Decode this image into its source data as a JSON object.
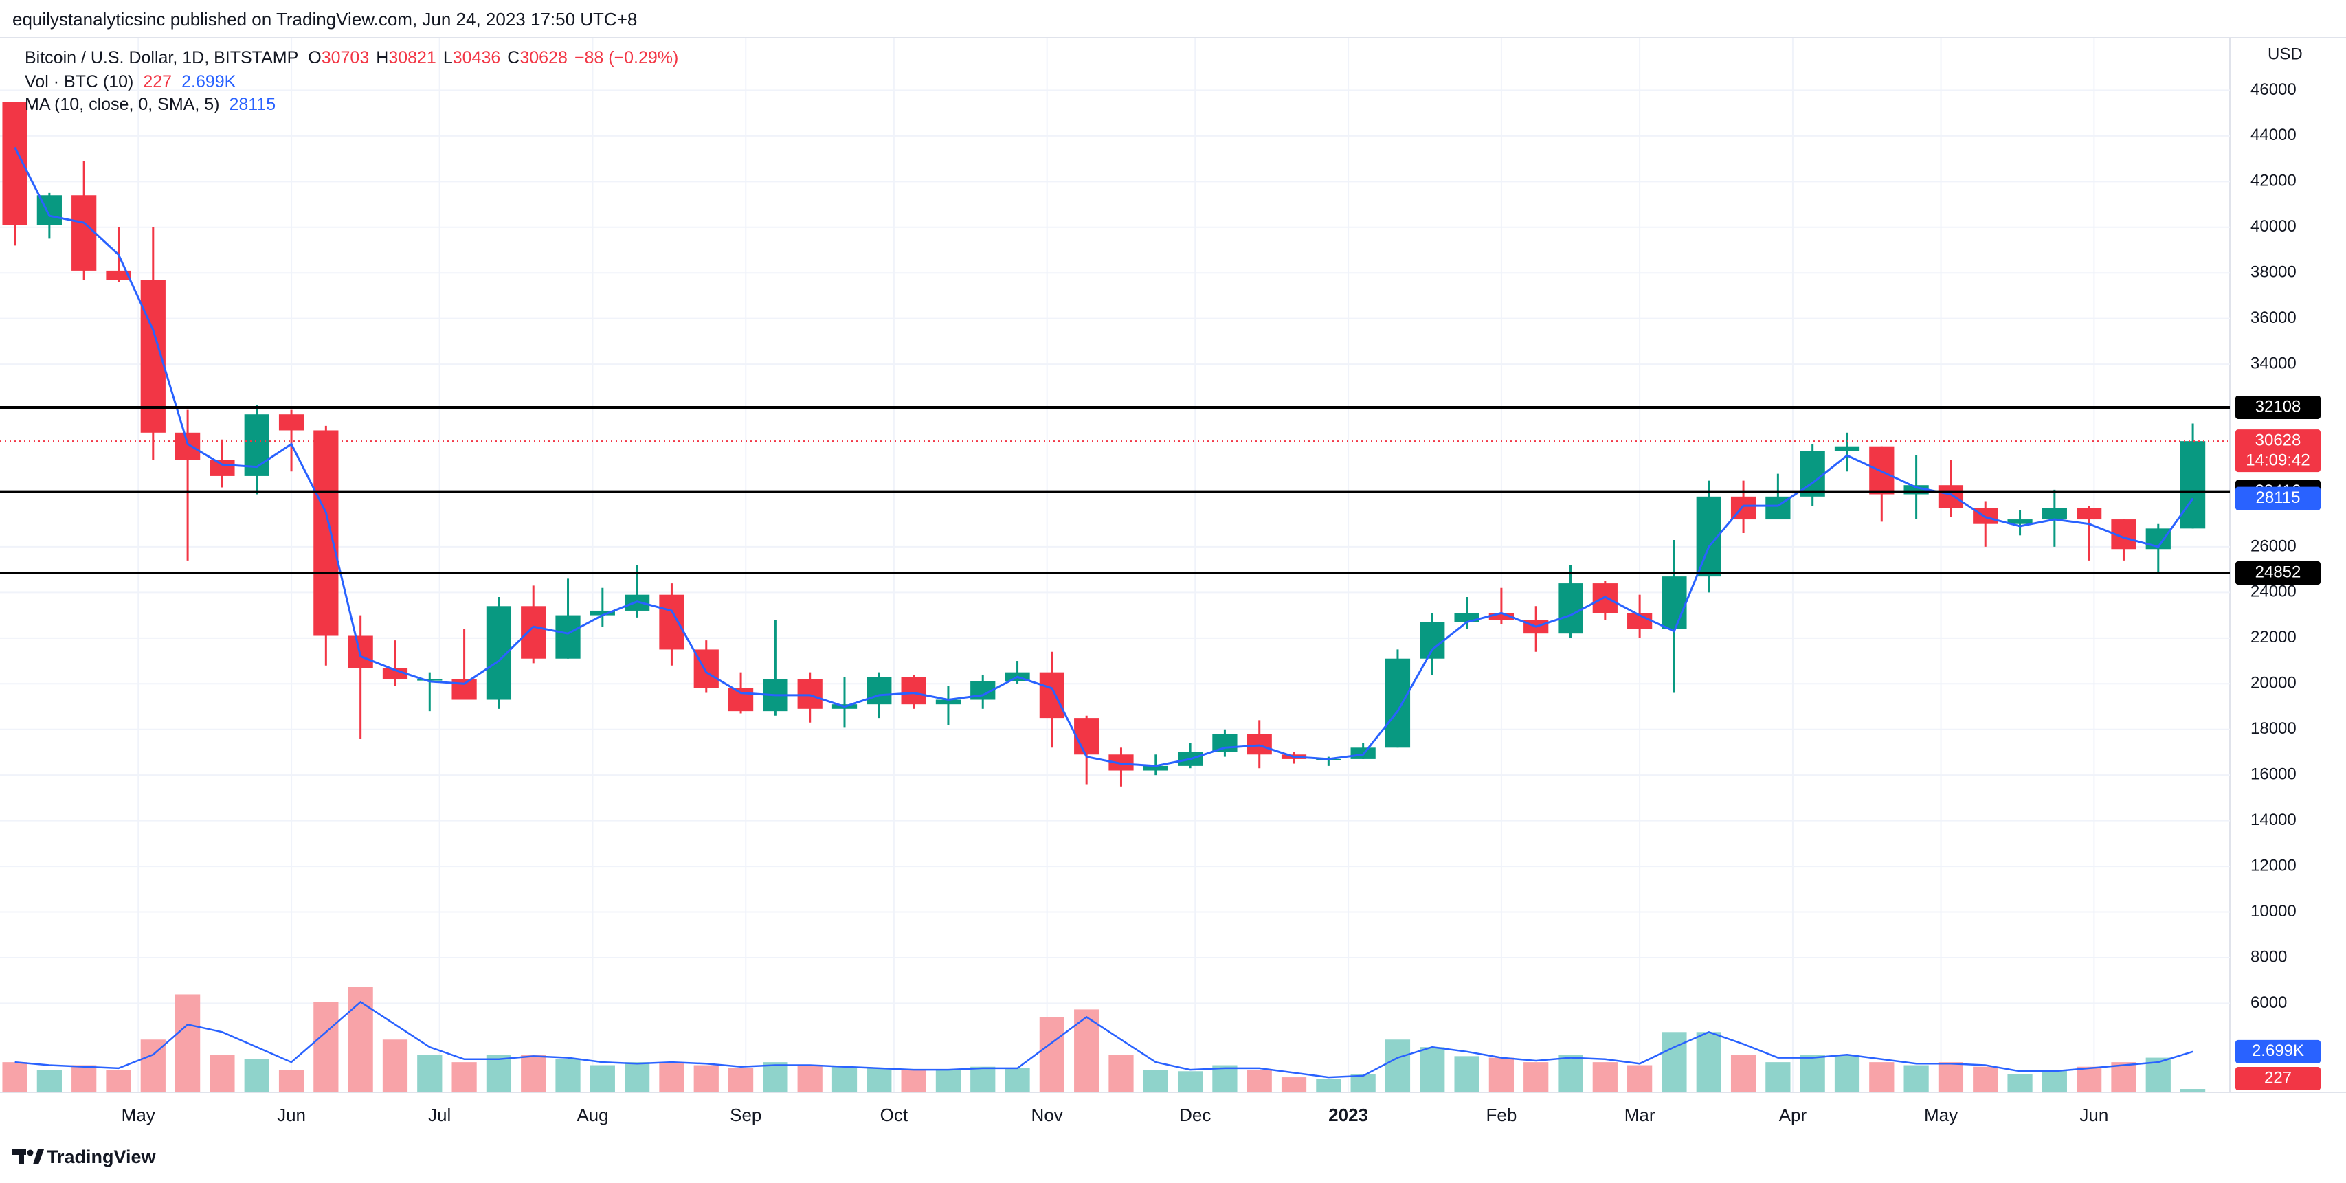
{
  "header": "equilystanalyticsinc published on TradingView.com, Jun 24, 2023 17:50 UTC+8",
  "footer": "TradingView",
  "chart_data": {
    "type": "candlestick",
    "symbol": "Bitcoin / U.S. Dollar, 1D, BITSTAMP",
    "ohlc_legend": [
      {
        "label": "O",
        "value": 30703
      },
      {
        "label": "H",
        "value": 30821
      },
      {
        "label": "L",
        "value": 30436
      },
      {
        "label": "C",
        "value": 30628
      }
    ],
    "change_label": "−88 (−0.29%)",
    "y_axis_label": "USD",
    "x": [
      0,
      7,
      14,
      21,
      28,
      35,
      42,
      49,
      56,
      63,
      70,
      77,
      84,
      91,
      98,
      105,
      112,
      119,
      126,
      133,
      140,
      147,
      154,
      161,
      168,
      175,
      182,
      189,
      196,
      203,
      210,
      217,
      224,
      231,
      238,
      245,
      252,
      259,
      266,
      273,
      280,
      287,
      294,
      301,
      308,
      315,
      322,
      329,
      336,
      343,
      350,
      357,
      364,
      371,
      378,
      385,
      392,
      399,
      406,
      413,
      420,
      427,
      434,
      441
    ],
    "open": [
      45500,
      40100,
      41400,
      38100,
      37700,
      31000,
      29800,
      29100,
      31800,
      31100,
      22100,
      20700,
      20200,
      20200,
      19300,
      23400,
      21100,
      23000,
      23200,
      23900,
      21500,
      19800,
      18800,
      20200,
      18900,
      19100,
      20300,
      19100,
      19300,
      20100,
      20500,
      18500,
      16900,
      16200,
      16400,
      17000,
      17800,
      16900,
      16700,
      16700,
      17200,
      21100,
      22700,
      23100,
      22800,
      22200,
      24400,
      23100,
      22400,
      24700,
      28200,
      27200,
      28200,
      30200,
      30400,
      28300,
      28700,
      27700,
      27000,
      27200,
      27700,
      27200,
      25900,
      26800
    ],
    "high": [
      45500,
      41500,
      42900,
      40000,
      40000,
      32000,
      30700,
      32200,
      32000,
      31300,
      23000,
      21900,
      20500,
      22400,
      23800,
      24300,
      24600,
      24200,
      25200,
      24400,
      21900,
      20500,
      22800,
      20500,
      20300,
      20500,
      20400,
      19900,
      20400,
      21000,
      21400,
      18600,
      17200,
      16900,
      17400,
      18000,
      18400,
      17000,
      16800,
      17400,
      21500,
      23100,
      23800,
      24200,
      23400,
      25200,
      24500,
      23900,
      26300,
      28900,
      28900,
      29200,
      30500,
      31000,
      30400,
      30000,
      29800,
      28000,
      27600,
      28500,
      27800,
      27200,
      27000,
      31400
    ],
    "low": [
      39200,
      39500,
      37700,
      37600,
      29800,
      25400,
      28600,
      28300,
      29300,
      20800,
      17600,
      19900,
      18800,
      19300,
      18900,
      20900,
      21100,
      22500,
      22900,
      20800,
      19600,
      18700,
      18600,
      18300,
      18100,
      18500,
      18900,
      18200,
      18900,
      20000,
      17200,
      15600,
      15500,
      16000,
      16300,
      16800,
      16300,
      16500,
      16400,
      16700,
      17200,
      20400,
      22400,
      22600,
      21400,
      22000,
      22800,
      22000,
      19600,
      24000,
      26600,
      27200,
      27800,
      29300,
      27100,
      27200,
      27300,
      26000,
      26500,
      26000,
      25400,
      25400,
      24800,
      26800
    ],
    "close": [
      40100,
      41400,
      38100,
      37700,
      31000,
      29800,
      29100,
      31800,
      31100,
      22100,
      20700,
      20200,
      20200,
      19300,
      23400,
      21100,
      23000,
      23200,
      23900,
      21500,
      19800,
      18800,
      20200,
      18900,
      19100,
      20300,
      19100,
      19300,
      20100,
      20500,
      18500,
      16900,
      16200,
      16400,
      17000,
      17800,
      16900,
      16700,
      16700,
      17200,
      21100,
      22700,
      23100,
      22800,
      22200,
      24400,
      23100,
      22400,
      24700,
      28200,
      27200,
      28200,
      30200,
      30400,
      28300,
      28700,
      27700,
      27000,
      27200,
      27700,
      27200,
      25900,
      26800,
      30628
    ],
    "up_color": "#089981",
    "down_color": "#f23645",
    "series": [
      {
        "name": "MA (10, close, 0, SMA, 5)",
        "color": "#2962ff",
        "values": [
          43500,
          40500,
          40200,
          38800,
          35500,
          30500,
          29600,
          29500,
          30500,
          27500,
          21200,
          20600,
          20100,
          20000,
          21000,
          22500,
          22200,
          23000,
          23600,
          23200,
          20500,
          19600,
          19500,
          19500,
          19000,
          19500,
          19600,
          19300,
          19500,
          20300,
          19800,
          16800,
          16500,
          16400,
          16700,
          17200,
          17300,
          16800,
          16700,
          16900,
          18800,
          21500,
          22700,
          23100,
          22500,
          23000,
          23800,
          23000,
          22300,
          26000,
          27800,
          27800,
          28800,
          30000,
          29300,
          28600,
          28300,
          27300,
          26900,
          27200,
          27000,
          26400,
          26000,
          28115
        ]
      }
    ],
    "volume": {
      "name": "Vol · BTC (10)",
      "axis": "y2",
      "up_color": "#8fd3cb",
      "down_color": "#f8a3a8",
      "ma_color": "#2962ff",
      "ma_label": "2.699K",
      "values": [
        2000,
        1500,
        1800,
        1500,
        3500,
        6500,
        2500,
        2200,
        1500,
        6000,
        7000,
        3500,
        2500,
        2000,
        2500,
        2500,
        2200,
        1800,
        2000,
        2000,
        1800,
        1600,
        2000,
        1800,
        1700,
        1600,
        1500,
        1500,
        1700,
        1600,
        5000,
        5500,
        2500,
        1500,
        1400,
        1800,
        1500,
        1000,
        900,
        1200,
        3500,
        3000,
        2400,
        2300,
        2000,
        2500,
        2000,
        1800,
        4000,
        4000,
        2500,
        2000,
        2500,
        2500,
        2000,
        1800,
        2000,
        1700,
        1200,
        1500,
        1700,
        2000,
        2300,
        227
      ],
      "ma_values": [
        2000,
        1800,
        1700,
        1600,
        2500,
        4500,
        4000,
        3000,
        2000,
        4000,
        6000,
        4500,
        3000,
        2200,
        2200,
        2400,
        2300,
        2000,
        1900,
        2000,
        1900,
        1700,
        1800,
        1800,
        1700,
        1600,
        1500,
        1500,
        1600,
        1600,
        3300,
        5000,
        3500,
        2000,
        1500,
        1600,
        1600,
        1300,
        1000,
        1100,
        2300,
        3000,
        2700,
        2300,
        2100,
        2300,
        2200,
        1900,
        3000,
        4000,
        3200,
        2300,
        2300,
        2500,
        2200,
        1900,
        1900,
        1800,
        1400,
        1400,
        1600,
        1800,
        2000,
        2699
      ]
    },
    "levels": [
      32108,
      28416,
      24852
    ],
    "level_color": "#000000",
    "countdown": "14:09:42",
    "xlim": [
      -3,
      448.5
    ],
    "ylim": [
      2100,
      48300
    ],
    "y2lim": [
      0,
      70000
    ],
    "xticks": [
      {
        "value": 25,
        "label": "May"
      },
      {
        "value": 56,
        "label": "Jun"
      },
      {
        "value": 86,
        "label": "Jul"
      },
      {
        "value": 117,
        "label": "Aug"
      },
      {
        "value": 148,
        "label": "Sep"
      },
      {
        "value": 178,
        "label": "Oct"
      },
      {
        "value": 209,
        "label": "Nov"
      },
      {
        "value": 239,
        "label": "Dec"
      },
      {
        "value": 270,
        "label": "2023"
      },
      {
        "value": 301,
        "label": "Feb"
      },
      {
        "value": 329,
        "label": "Mar"
      },
      {
        "value": 360,
        "label": "Apr"
      },
      {
        "value": 390,
        "label": "May"
      },
      {
        "value": 421,
        "label": "Jun"
      }
    ],
    "yticks": [
      46000,
      44000,
      42000,
      40000,
      38000,
      36000,
      34000,
      26000,
      24000,
      22000,
      20000,
      18000,
      16000,
      14000,
      12000,
      10000,
      8000,
      6000
    ],
    "grid": true
  }
}
